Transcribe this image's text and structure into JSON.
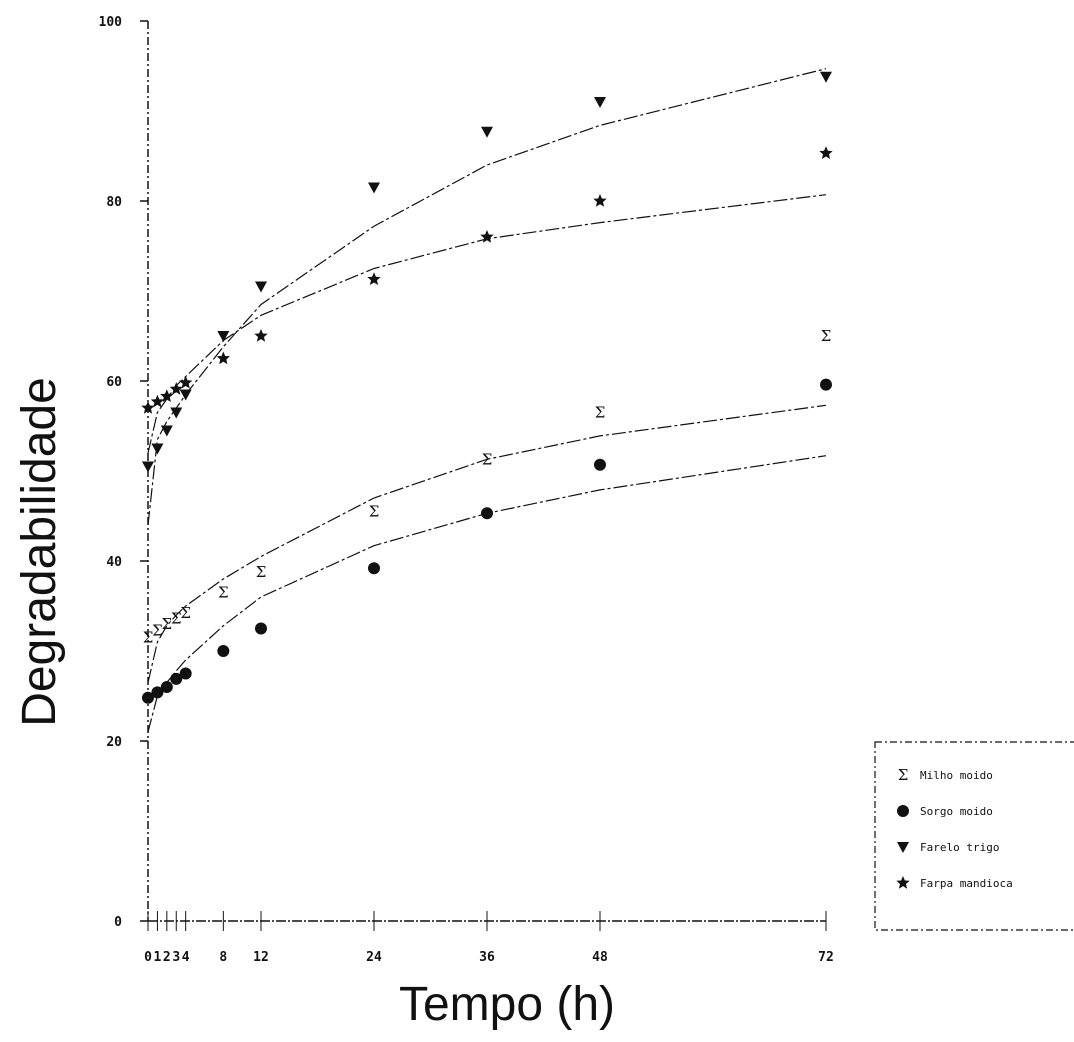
{
  "chart_data": {
    "type": "scatter",
    "xlabel": "Tempo (h)",
    "ylabel": "Degradabilidade",
    "xlim": [
      0,
      72
    ],
    "ylim": [
      0,
      100
    ],
    "x_ticks": [
      0,
      1,
      2,
      3,
      4,
      8,
      12,
      24,
      36,
      48,
      72
    ],
    "x_tick_labels": [
      "0",
      "1",
      "2",
      "3",
      "4",
      "8",
      "12",
      "24",
      "36",
      "48",
      "72"
    ],
    "y_ticks": [
      0,
      20,
      40,
      60,
      80,
      100
    ],
    "y_tick_labels": [
      "0",
      "20",
      "40",
      "60",
      "80",
      "100"
    ],
    "grid": false,
    "legend_position": "right",
    "series": [
      {
        "name": "Milho moido",
        "marker": "sigma",
        "x": [
          0,
          1,
          2,
          3,
          4,
          8,
          12,
          24,
          36,
          48,
          72
        ],
        "y": [
          31.5,
          32.3,
          33.0,
          33.6,
          34.2,
          36.5,
          38.8,
          45.5,
          51.3,
          56.5,
          65.0
        ],
        "fit_y": [
          26.5,
          31.0,
          32.8,
          34.0,
          35.0,
          38.0,
          40.5,
          47.0,
          51.3,
          53.9,
          57.3
        ]
      },
      {
        "name": "Sorgo moido",
        "marker": "circle",
        "x": [
          0,
          1,
          2,
          3,
          4,
          8,
          12,
          24,
          36,
          48,
          72
        ],
        "y": [
          24.8,
          25.4,
          26.0,
          26.9,
          27.5,
          30.0,
          32.5,
          39.2,
          45.3,
          50.7,
          59.6
        ],
        "fit_y": [
          21.0,
          25.0,
          26.5,
          27.8,
          29.0,
          32.8,
          36.0,
          41.7,
          45.3,
          47.9,
          51.7
        ]
      },
      {
        "name": "Farelo trigo",
        "marker": "triangle-down",
        "x": [
          0,
          1,
          2,
          3,
          4,
          8,
          12,
          24,
          36,
          48,
          72
        ],
        "y": [
          50.5,
          52.5,
          54.5,
          56.5,
          58.5,
          65.0,
          70.5,
          81.5,
          87.7,
          91.0,
          93.8
        ],
        "fit_y": [
          44.0,
          53.5,
          55.5,
          57.0,
          58.5,
          63.8,
          68.5,
          77.2,
          84.0,
          88.4,
          94.7
        ]
      },
      {
        "name": "Farpa mandioca",
        "marker": "star",
        "x": [
          0,
          1,
          2,
          3,
          4,
          8,
          12,
          24,
          36,
          48,
          72
        ],
        "y": [
          57.0,
          57.7,
          58.3,
          59.1,
          59.8,
          62.5,
          65.0,
          71.3,
          76.0,
          80.0,
          85.3
        ],
        "fit_y": [
          52.0,
          56.5,
          58.0,
          59.5,
          60.5,
          64.5,
          67.3,
          72.5,
          75.8,
          77.6,
          80.7
        ]
      }
    ]
  }
}
